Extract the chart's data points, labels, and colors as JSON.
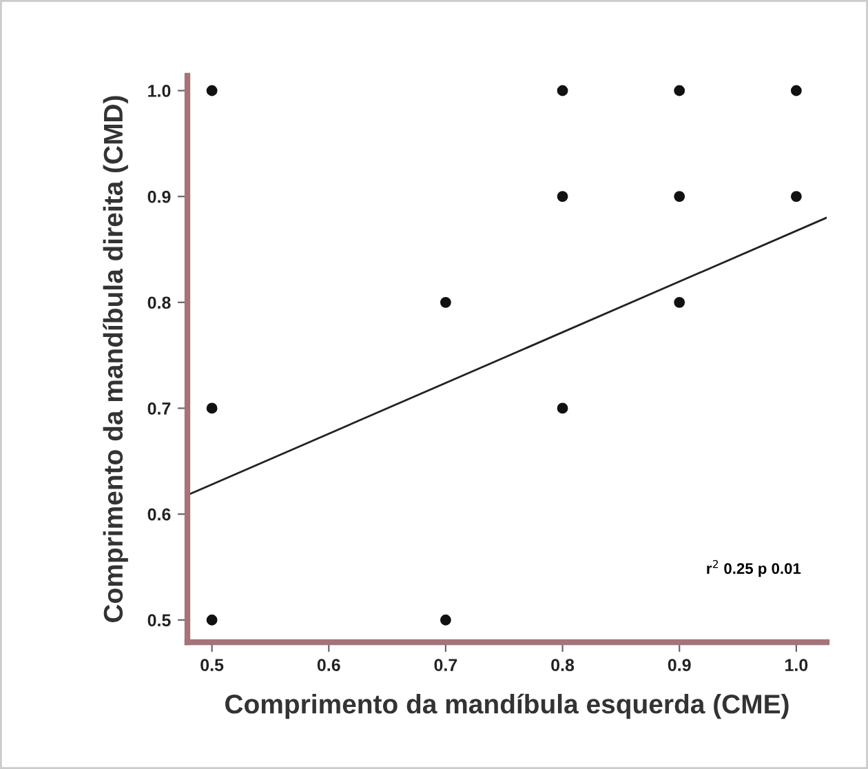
{
  "chart_data": {
    "type": "scatter",
    "xlabel": "Comprimento da mandíbula esquerda (CME)",
    "ylabel": "Comprimento da mandíbula direita (CMD)",
    "series": [
      {
        "color": "#111111",
        "marker": "circle",
        "x": [
          0.5,
          0.5,
          0.5,
          0.7,
          0.7,
          0.8,
          0.8,
          0.8,
          0.9,
          0.9,
          0.9,
          1.0,
          1.0
        ],
        "values": [
          1.0,
          0.7,
          0.5,
          0.8,
          0.5,
          1.0,
          0.9,
          0.7,
          1.0,
          0.9,
          0.8,
          1.0,
          0.9
        ]
      },
      {
        "type": "line",
        "color": "#222222",
        "line_style": "solid",
        "x": [
          0.479,
          1.026
        ],
        "values": [
          0.618,
          0.88
        ]
      }
    ],
    "annotations": [
      "r$^{2}$ 0.25 p 0.01"
    ],
    "xlim": [
      0.479,
      1.026
    ],
    "ylim": [
      0.479,
      1.014
    ],
    "xticks": [
      0.5,
      0.6,
      0.7,
      0.8,
      0.9,
      {
        "value": 1,
        "label": "1.0"
      }
    ],
    "yticks": [
      0.5,
      0.6,
      0.7,
      0.8,
      0.9,
      {
        "value": 1,
        "label": "1.0"
      }
    ],
    "grid": false,
    "legend": false
  }
}
